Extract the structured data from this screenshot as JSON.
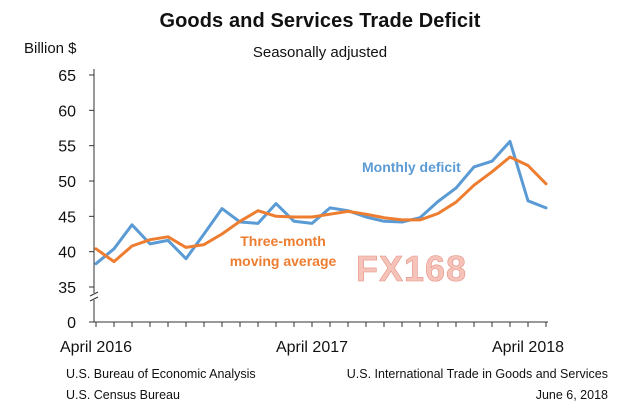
{
  "chart_data": {
    "type": "line",
    "title": "Goods and Services Trade Deficit",
    "subtitle": "Seasonally adjusted",
    "ylabel": "Billion $",
    "ylim": [
      0,
      65
    ],
    "axis_break": [
      0,
      35
    ],
    "yticks": [
      0,
      35,
      40,
      45,
      50,
      55,
      60,
      65
    ],
    "xlim": [
      "2016-04",
      "2018-04"
    ],
    "x_tick_labels": [
      "April 2016",
      "April 2017",
      "April 2018"
    ],
    "x_tick_months": [
      "2016-04",
      "2017-04",
      "2018-04"
    ],
    "grid": false,
    "x": [
      "2016-04",
      "2016-05",
      "2016-06",
      "2016-07",
      "2016-08",
      "2016-09",
      "2016-10",
      "2016-11",
      "2016-12",
      "2017-01",
      "2017-02",
      "2017-03",
      "2017-04",
      "2017-05",
      "2017-06",
      "2017-07",
      "2017-08",
      "2017-09",
      "2017-10",
      "2017-11",
      "2017-12",
      "2018-01",
      "2018-02",
      "2018-03",
      "2018-04"
    ],
    "series": [
      {
        "name": "Monthly deficit",
        "color": "#5b9bd5",
        "values": [
          38.3,
          40.4,
          43.8,
          41.1,
          41.6,
          39.0,
          42.5,
          46.1,
          44.2,
          44.0,
          46.8,
          44.3,
          44.0,
          46.2,
          45.8,
          44.9,
          44.3,
          44.2,
          44.8,
          47.1,
          49.0,
          52.0,
          52.8,
          55.6,
          47.2
        ]
      },
      {
        "name": "Three-month moving average",
        "color": "#ed7d31",
        "values": [
          40.4,
          38.6,
          40.8,
          41.7,
          42.1,
          40.6,
          41.0,
          42.5,
          44.3,
          45.8,
          45.0,
          44.9,
          44.9,
          45.3,
          45.7,
          45.3,
          44.8,
          44.5,
          44.5,
          45.4,
          47.0,
          49.4,
          51.3,
          53.4,
          52.2
        ]
      }
    ],
    "extra_points": [
      {
        "series": "Monthly deficit",
        "x": "2018-05",
        "y": 46.2
      },
      {
        "series": "Three-month moving average",
        "x": "2018-05",
        "y": 49.6
      }
    ],
    "series_labels": {
      "monthly": "Monthly deficit",
      "avg_line1": "Three-month",
      "avg_line2": "moving average"
    }
  },
  "watermark": "FX168",
  "footer": {
    "left_line1": "U.S. Bureau of Economic Analysis",
    "left_line2": "U.S. Census Bureau",
    "right_line1": "U.S. International Trade in Goods and Services",
    "right_line2": "June 6, 2018"
  }
}
